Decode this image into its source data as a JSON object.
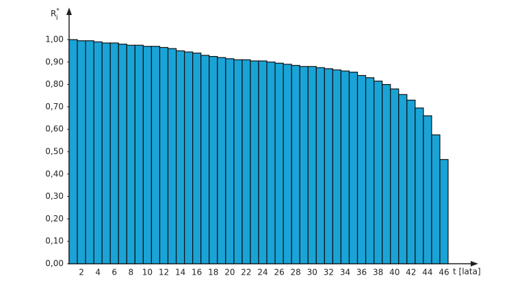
{
  "chart_data": {
    "type": "bar",
    "ylabel": "R",
    "ylabel_sup": "*",
    "ylabel_sub": "i",
    "xlabel": "t [lata]",
    "categories": [
      null,
      "2",
      null,
      "4",
      null,
      "6",
      null,
      "8",
      null,
      "10",
      null,
      "12",
      null,
      "14",
      null,
      "16",
      null,
      "18",
      null,
      "20",
      null,
      "22",
      null,
      "24",
      null,
      "26",
      null,
      "28",
      null,
      "30",
      null,
      "32",
      null,
      "34",
      null,
      "36",
      null,
      "38",
      null,
      "40",
      null,
      "42",
      null,
      "44",
      null,
      "46"
    ],
    "values": [
      1.0,
      0.995,
      0.995,
      0.99,
      0.985,
      0.985,
      0.98,
      0.975,
      0.975,
      0.97,
      0.97,
      0.965,
      0.96,
      0.95,
      0.945,
      0.94,
      0.93,
      0.925,
      0.92,
      0.915,
      0.91,
      0.91,
      0.905,
      0.905,
      0.9,
      0.895,
      0.89,
      0.885,
      0.88,
      0.88,
      0.875,
      0.87,
      0.865,
      0.86,
      0.855,
      0.84,
      0.83,
      0.815,
      0.8,
      0.78,
      0.755,
      0.73,
      0.695,
      0.66,
      0.575,
      0.465
    ],
    "color": "#1aa3d6",
    "ylim": [
      0,
      1
    ],
    "yticks": [
      {
        "value": 0,
        "label": "0,00"
      },
      {
        "value": 0.1,
        "label": "0,10"
      },
      {
        "value": 0.2,
        "label": "0,20"
      },
      {
        "value": 0.3,
        "label": "0,30"
      },
      {
        "value": 0.4,
        "label": "0,40"
      },
      {
        "value": 0.5,
        "label": "0,50"
      },
      {
        "value": 0.6,
        "label": "0,60"
      },
      {
        "value": 0.7,
        "label": "0,70"
      },
      {
        "value": 0.8,
        "label": "0,80"
      },
      {
        "value": 0.9,
        "label": "0,90"
      },
      {
        "value": 1,
        "label": "1,00"
      }
    ],
    "grid": false
  }
}
